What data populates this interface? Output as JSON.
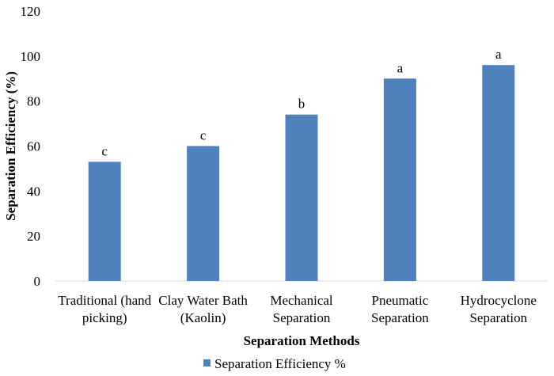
{
  "chart_data": {
    "type": "bar",
    "title": "",
    "categories": [
      [
        "Traditional (hand",
        "picking)"
      ],
      [
        "Clay Water Bath",
        "(Kaolin)"
      ],
      [
        "Mechanical",
        "Separation"
      ],
      [
        "Pneumatic",
        "Separation"
      ],
      [
        "Hydrocyclone",
        "Separation"
      ]
    ],
    "series": [
      {
        "name": "Separation Efficiency %",
        "values": [
          53,
          60,
          74,
          90,
          96
        ],
        "labels": [
          "c",
          "c",
          "b",
          "a",
          "a"
        ],
        "color": "#4f81bd"
      }
    ],
    "xlabel": "Separation Methods",
    "ylabel": "Separation Efficiency (%)",
    "ylim": [
      0,
      120
    ],
    "yticks": [
      0,
      20,
      40,
      60,
      80,
      100,
      120
    ],
    "grid": false,
    "legend": "bottom-center"
  }
}
